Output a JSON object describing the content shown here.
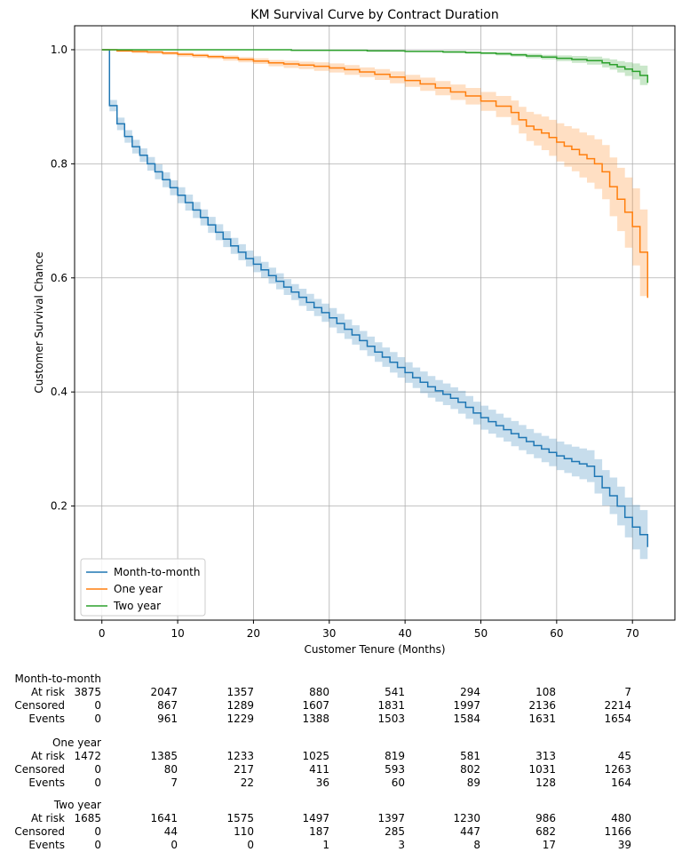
{
  "chart_data": {
    "type": "line",
    "title": "KM Survival Curve by Contract Duration",
    "xlabel": "Customer Tenure (Months)",
    "ylabel": "Customer Survival Chance",
    "xlim": [
      -3.6,
      75.6
    ],
    "ylim": [
      0.0,
      1.042
    ],
    "xticks": [
      0,
      10,
      20,
      30,
      40,
      50,
      60,
      70
    ],
    "yticks": [
      0.2,
      0.4,
      0.6,
      0.8,
      1.0
    ],
    "xtick_labels": [
      "0",
      "10",
      "20",
      "30",
      "40",
      "50",
      "60",
      "70"
    ],
    "ytick_labels": [
      "0.2",
      "0.4",
      "0.6",
      "0.8",
      "1.0"
    ],
    "grid": true,
    "legend_position": "bottom-left",
    "series": [
      {
        "name": "Month-to-month",
        "color": "#1f77b4",
        "x": [
          0,
          1,
          2,
          3,
          4,
          5,
          6,
          7,
          8,
          9,
          10,
          11,
          12,
          13,
          14,
          15,
          16,
          17,
          18,
          19,
          20,
          21,
          22,
          23,
          24,
          25,
          26,
          27,
          28,
          29,
          30,
          31,
          32,
          33,
          34,
          35,
          36,
          37,
          38,
          39,
          40,
          41,
          42,
          43,
          44,
          45,
          46,
          47,
          48,
          49,
          50,
          51,
          52,
          53,
          54,
          55,
          56,
          57,
          58,
          59,
          60,
          61,
          62,
          63,
          64,
          65,
          66,
          67,
          68,
          69,
          70,
          71,
          72
        ],
        "y": [
          1.0,
          0.902,
          0.87,
          0.848,
          0.83,
          0.815,
          0.8,
          0.786,
          0.772,
          0.758,
          0.745,
          0.732,
          0.719,
          0.706,
          0.693,
          0.68,
          0.668,
          0.656,
          0.645,
          0.634,
          0.624,
          0.614,
          0.604,
          0.594,
          0.584,
          0.575,
          0.566,
          0.557,
          0.548,
          0.539,
          0.53,
          0.52,
          0.51,
          0.5,
          0.49,
          0.48,
          0.47,
          0.461,
          0.452,
          0.443,
          0.434,
          0.425,
          0.417,
          0.409,
          0.402,
          0.396,
          0.389,
          0.382,
          0.373,
          0.363,
          0.355,
          0.348,
          0.341,
          0.334,
          0.327,
          0.32,
          0.313,
          0.306,
          0.3,
          0.294,
          0.288,
          0.283,
          0.278,
          0.274,
          0.27,
          0.252,
          0.232,
          0.218,
          0.2,
          0.18,
          0.163,
          0.15,
          0.128
        ],
        "ci_lower": [
          1.0,
          0.892,
          0.859,
          0.837,
          0.818,
          0.803,
          0.788,
          0.773,
          0.759,
          0.745,
          0.731,
          0.718,
          0.705,
          0.692,
          0.679,
          0.666,
          0.654,
          0.642,
          0.631,
          0.62,
          0.61,
          0.6,
          0.59,
          0.58,
          0.57,
          0.561,
          0.551,
          0.542,
          0.533,
          0.523,
          0.513,
          0.503,
          0.493,
          0.483,
          0.473,
          0.463,
          0.453,
          0.444,
          0.434,
          0.425,
          0.416,
          0.407,
          0.398,
          0.39,
          0.383,
          0.377,
          0.37,
          0.362,
          0.353,
          0.343,
          0.334,
          0.327,
          0.32,
          0.313,
          0.305,
          0.298,
          0.291,
          0.284,
          0.277,
          0.27,
          0.263,
          0.258,
          0.252,
          0.247,
          0.242,
          0.222,
          0.201,
          0.186,
          0.166,
          0.145,
          0.124,
          0.107,
          0.076
        ],
        "ci_upper": [
          1.0,
          0.912,
          0.881,
          0.859,
          0.842,
          0.827,
          0.812,
          0.799,
          0.785,
          0.771,
          0.759,
          0.746,
          0.733,
          0.72,
          0.707,
          0.694,
          0.682,
          0.67,
          0.659,
          0.648,
          0.638,
          0.628,
          0.618,
          0.608,
          0.598,
          0.589,
          0.581,
          0.572,
          0.563,
          0.555,
          0.547,
          0.537,
          0.527,
          0.517,
          0.507,
          0.497,
          0.487,
          0.478,
          0.47,
          0.461,
          0.452,
          0.443,
          0.436,
          0.428,
          0.421,
          0.415,
          0.408,
          0.402,
          0.393,
          0.383,
          0.376,
          0.369,
          0.362,
          0.355,
          0.349,
          0.342,
          0.335,
          0.328,
          0.323,
          0.318,
          0.313,
          0.308,
          0.304,
          0.301,
          0.298,
          0.282,
          0.263,
          0.25,
          0.234,
          0.215,
          0.202,
          0.193,
          0.18
        ]
      },
      {
        "name": "One year",
        "color": "#ff7f0e",
        "x": [
          0,
          2,
          4,
          6,
          8,
          10,
          12,
          14,
          16,
          18,
          20,
          22,
          24,
          26,
          28,
          30,
          32,
          34,
          36,
          38,
          40,
          42,
          44,
          46,
          48,
          50,
          52,
          54,
          55,
          56,
          57,
          58,
          59,
          60,
          61,
          62,
          63,
          64,
          65,
          66,
          67,
          68,
          69,
          70,
          71,
          72
        ],
        "y": [
          1.0,
          0.998,
          0.997,
          0.996,
          0.994,
          0.992,
          0.99,
          0.988,
          0.986,
          0.983,
          0.98,
          0.977,
          0.975,
          0.973,
          0.971,
          0.968,
          0.965,
          0.961,
          0.957,
          0.952,
          0.946,
          0.94,
          0.933,
          0.926,
          0.919,
          0.91,
          0.901,
          0.89,
          0.877,
          0.866,
          0.86,
          0.854,
          0.846,
          0.838,
          0.831,
          0.825,
          0.816,
          0.809,
          0.8,
          0.786,
          0.76,
          0.738,
          0.715,
          0.69,
          0.645,
          0.565
        ],
        "ci_lower": [
          1.0,
          0.996,
          0.994,
          0.993,
          0.991,
          0.988,
          0.986,
          0.984,
          0.981,
          0.978,
          0.975,
          0.971,
          0.968,
          0.966,
          0.963,
          0.96,
          0.956,
          0.952,
          0.947,
          0.941,
          0.935,
          0.928,
          0.92,
          0.912,
          0.904,
          0.893,
          0.882,
          0.868,
          0.853,
          0.84,
          0.832,
          0.824,
          0.814,
          0.804,
          0.795,
          0.787,
          0.776,
          0.767,
          0.756,
          0.738,
          0.708,
          0.682,
          0.653,
          0.622,
          0.568,
          0.45
        ],
        "ci_upper": [
          1.0,
          0.999,
          0.999,
          0.998,
          0.997,
          0.995,
          0.993,
          0.991,
          0.99,
          0.987,
          0.985,
          0.982,
          0.981,
          0.979,
          0.978,
          0.976,
          0.973,
          0.969,
          0.966,
          0.962,
          0.956,
          0.951,
          0.945,
          0.939,
          0.933,
          0.926,
          0.919,
          0.911,
          0.9,
          0.891,
          0.887,
          0.883,
          0.877,
          0.871,
          0.866,
          0.862,
          0.855,
          0.85,
          0.843,
          0.833,
          0.811,
          0.793,
          0.776,
          0.757,
          0.72,
          0.705
        ]
      },
      {
        "name": "Two year",
        "color": "#2ca02c",
        "x": [
          0,
          5,
          10,
          15,
          20,
          25,
          30,
          35,
          40,
          45,
          48,
          50,
          52,
          54,
          56,
          58,
          60,
          62,
          64,
          66,
          67,
          68,
          69,
          70,
          71,
          72
        ],
        "y": [
          1.0,
          1.0,
          1.0,
          1.0,
          1.0,
          0.999,
          0.999,
          0.998,
          0.997,
          0.996,
          0.995,
          0.994,
          0.993,
          0.991,
          0.989,
          0.987,
          0.985,
          0.983,
          0.981,
          0.977,
          0.974,
          0.97,
          0.966,
          0.962,
          0.955,
          0.942
        ],
        "ci_lower": [
          1.0,
          1.0,
          1.0,
          1.0,
          1.0,
          0.999,
          0.998,
          0.997,
          0.996,
          0.994,
          0.993,
          0.992,
          0.99,
          0.988,
          0.985,
          0.983,
          0.98,
          0.977,
          0.974,
          0.969,
          0.965,
          0.96,
          0.954,
          0.948,
          0.938,
          0.92
        ],
        "ci_upper": [
          1.0,
          1.0,
          1.0,
          1.0,
          1.0,
          1.0,
          1.0,
          0.999,
          0.998,
          0.998,
          0.997,
          0.996,
          0.996,
          0.994,
          0.993,
          0.991,
          0.99,
          0.989,
          0.988,
          0.985,
          0.983,
          0.98,
          0.978,
          0.976,
          0.972,
          0.964
        ]
      }
    ]
  },
  "risk_table": {
    "columns": [
      "0",
      "10",
      "20",
      "30",
      "40",
      "50",
      "60",
      "70"
    ],
    "groups": [
      {
        "title": "Month-to-month",
        "rows": [
          {
            "label": "At risk",
            "values": [
              "3875",
              "2047",
              "1357",
              "880",
              "541",
              "294",
              "108",
              "7"
            ]
          },
          {
            "label": "Censored",
            "values": [
              "0",
              "867",
              "1289",
              "1607",
              "1831",
              "1997",
              "2136",
              "2214"
            ]
          },
          {
            "label": "Events",
            "values": [
              "0",
              "961",
              "1229",
              "1388",
              "1503",
              "1584",
              "1631",
              "1654"
            ]
          }
        ]
      },
      {
        "title": "One year",
        "rows": [
          {
            "label": "At risk",
            "values": [
              "1472",
              "1385",
              "1233",
              "1025",
              "819",
              "581",
              "313",
              "45"
            ]
          },
          {
            "label": "Censored",
            "values": [
              "0",
              "80",
              "217",
              "411",
              "593",
              "802",
              "1031",
              "1263"
            ]
          },
          {
            "label": "Events",
            "values": [
              "0",
              "7",
              "22",
              "36",
              "60",
              "89",
              "128",
              "164"
            ]
          }
        ]
      },
      {
        "title": "Two year",
        "rows": [
          {
            "label": "At risk",
            "values": [
              "1685",
              "1641",
              "1575",
              "1497",
              "1397",
              "1230",
              "986",
              "480"
            ]
          },
          {
            "label": "Censored",
            "values": [
              "0",
              "44",
              "110",
              "187",
              "285",
              "447",
              "682",
              "1166"
            ]
          },
          {
            "label": "Events",
            "values": [
              "0",
              "0",
              "0",
              "1",
              "3",
              "8",
              "17",
              "39"
            ]
          }
        ]
      }
    ]
  }
}
